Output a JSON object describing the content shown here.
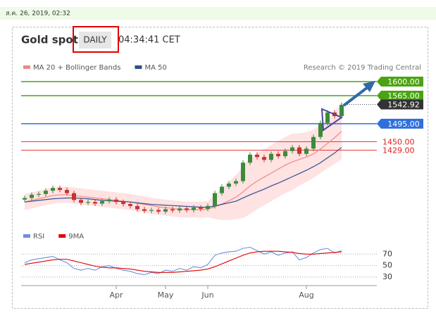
{
  "timestamp": "ส.ค. 26, 2019, 02:32",
  "chart_data": [
    {
      "type": "candlestick",
      "title": "Gold spot",
      "interval_button": "DAILY",
      "time": "04:34:41 CET",
      "credit": "Research © 2019 Trading Central",
      "categories": [
        null,
        null,
        null,
        null,
        null,
        null,
        null,
        null,
        null,
        null,
        null,
        null,
        null,
        null,
        null,
        null,
        null,
        null,
        null,
        null,
        null,
        null,
        null,
        null,
        null,
        null,
        null,
        null,
        null,
        null,
        null,
        null,
        null,
        null,
        null,
        null,
        null,
        null,
        null,
        null,
        null,
        null,
        null,
        null,
        null,
        null
      ],
      "open": [
        1306,
        1310,
        1318,
        1320,
        1328,
        1335,
        1330,
        1322,
        1305,
        1298,
        1300,
        1296,
        1302,
        1306,
        1300,
        1295,
        1290,
        1282,
        1278,
        1280,
        1276,
        1282,
        1279,
        1284,
        1280,
        1286,
        1283,
        1290,
        1322,
        1338,
        1346,
        1352,
        1398,
        1418,
        1412,
        1405,
        1420,
        1414,
        1427,
        1436,
        1420,
        1433,
        1462,
        1497,
        1523,
        1514
      ],
      "high": [
        1316,
        1324,
        1326,
        1334,
        1341,
        1341,
        1336,
        1328,
        1311,
        1306,
        1306,
        1308,
        1312,
        1312,
        1306,
        1301,
        1296,
        1288,
        1286,
        1286,
        1288,
        1288,
        1290,
        1290,
        1292,
        1292,
        1296,
        1328,
        1344,
        1352,
        1358,
        1404,
        1424,
        1424,
        1418,
        1426,
        1426,
        1433,
        1442,
        1442,
        1439,
        1468,
        1503,
        1529,
        1529,
        1548
      ],
      "low": [
        1300,
        1304,
        1312,
        1314,
        1322,
        1324,
        1316,
        1299,
        1292,
        1292,
        1290,
        1290,
        1296,
        1294,
        1289,
        1284,
        1276,
        1272,
        1272,
        1270,
        1270,
        1273,
        1273,
        1274,
        1274,
        1277,
        1277,
        1284,
        1316,
        1332,
        1340,
        1346,
        1392,
        1406,
        1399,
        1399,
        1408,
        1408,
        1421,
        1414,
        1414,
        1427,
        1456,
        1491,
        1508,
        1508
      ],
      "close": [
        1310,
        1318,
        1320,
        1328,
        1335,
        1330,
        1322,
        1305,
        1298,
        1300,
        1296,
        1302,
        1306,
        1300,
        1295,
        1290,
        1282,
        1278,
        1280,
        1276,
        1282,
        1279,
        1284,
        1280,
        1286,
        1283,
        1290,
        1322,
        1338,
        1346,
        1352,
        1398,
        1418,
        1412,
        1405,
        1420,
        1414,
        1427,
        1436,
        1420,
        1433,
        1462,
        1497,
        1523,
        1514,
        1542
      ],
      "up_color": "#3b8b3b",
      "down_color": "#c8332c",
      "series": [
        {
          "name": "MA 20 + Bollinger Bands",
          "color": "#ee8a8a",
          "band_color": "#ffd6d6",
          "values": [
            1300,
            1304,
            1308,
            1312,
            1316,
            1318,
            1318,
            1316,
            1314,
            1312,
            1310,
            1308,
            1306,
            1304,
            1302,
            1300,
            1297,
            1294,
            1291,
            1288,
            1286,
            1284,
            1282,
            1281,
            1281,
            1281,
            1282,
            1288,
            1295,
            1303,
            1312,
            1325,
            1340,
            1352,
            1362,
            1372,
            1382,
            1392,
            1400,
            1406,
            1412,
            1420,
            1432,
            1446,
            1460,
            1476
          ],
          "band_upper": [
            1320,
            1324,
            1328,
            1332,
            1336,
            1338,
            1338,
            1336,
            1334,
            1332,
            1330,
            1328,
            1326,
            1324,
            1322,
            1320,
            1317,
            1314,
            1311,
            1308,
            1306,
            1304,
            1302,
            1301,
            1301,
            1301,
            1302,
            1318,
            1335,
            1351,
            1367,
            1390,
            1410,
            1422,
            1432,
            1442,
            1452,
            1462,
            1470,
            1471,
            1474,
            1480,
            1492,
            1508,
            1525,
            1546
          ],
          "band_lower": [
            1280,
            1284,
            1288,
            1292,
            1296,
            1298,
            1298,
            1296,
            1294,
            1292,
            1290,
            1288,
            1286,
            1284,
            1282,
            1280,
            1277,
            1274,
            1271,
            1268,
            1266,
            1264,
            1262,
            1261,
            1261,
            1261,
            1262,
            1258,
            1255,
            1255,
            1257,
            1260,
            1270,
            1282,
            1292,
            1302,
            1312,
            1322,
            1330,
            1341,
            1350,
            1360,
            1372,
            1384,
            1395,
            1406
          ]
        },
        {
          "name": "MA 50",
          "color": "#2d4f8e",
          "values": [
            1300,
            1302,
            1304,
            1306,
            1308,
            1309,
            1310,
            1310,
            1309,
            1308,
            1306,
            1304,
            1303,
            1302,
            1301,
            1300,
            1298,
            1296,
            1294,
            1293,
            1292,
            1291,
            1290,
            1289,
            1288,
            1287,
            1287,
            1290,
            1294,
            1298,
            1302,
            1310,
            1318,
            1325,
            1332,
            1340,
            1347,
            1355,
            1363,
            1371,
            1379,
            1388,
            1398,
            1410,
            1422,
            1436
          ]
        }
      ],
      "levels": [
        {
          "value": 1600,
          "label": "1600.00",
          "color": "#4aa312",
          "style": "box",
          "dashed": false
        },
        {
          "value": 1565,
          "label": "1565.00",
          "color": "#4aa312",
          "style": "box",
          "dashed": false
        },
        {
          "value": 1542.92,
          "label": "1542.92",
          "color": "#333333",
          "style": "box",
          "dashed": true
        },
        {
          "value": 1495,
          "label": "1495.00",
          "color": "#2f6fdc",
          "style": "box",
          "dashed": false
        },
        {
          "value": 1450,
          "label": "1450.00",
          "color": "#e02020",
          "style": "text",
          "dashed": false
        },
        {
          "value": 1429,
          "label": "1429.00",
          "color": "#e02020",
          "style": "text",
          "dashed": false
        }
      ],
      "ylim": [
        1246,
        1614
      ]
    },
    {
      "type": "line",
      "series": [
        {
          "name": "RSI",
          "color": "#6f8fd8",
          "values": [
            55,
            60,
            62,
            64,
            66,
            60,
            55,
            45,
            42,
            45,
            42,
            48,
            50,
            45,
            42,
            40,
            36,
            34,
            38,
            36,
            42,
            40,
            45,
            42,
            48,
            46,
            52,
            68,
            72,
            74,
            75,
            80,
            82,
            76,
            70,
            74,
            68,
            72,
            74,
            60,
            64,
            72,
            78,
            80,
            72,
            76
          ]
        },
        {
          "name": "9MA",
          "color": "#e00000",
          "values": [
            52,
            54,
            56,
            58,
            60,
            61,
            61,
            58,
            55,
            52,
            49,
            47,
            46,
            46,
            45,
            44,
            42,
            40,
            39,
            38,
            38,
            38,
            39,
            40,
            41,
            42,
            44,
            48,
            53,
            58,
            63,
            68,
            72,
            74,
            75,
            75,
            75,
            74,
            73,
            71,
            70,
            70,
            71,
            72,
            73,
            74
          ]
        }
      ],
      "ylim": [
        20,
        90
      ],
      "yticks": [
        70,
        50,
        30
      ],
      "xticks": [
        {
          "value": 13,
          "label": "Apr"
        },
        {
          "value": 20,
          "label": "May"
        },
        {
          "value": 26,
          "label": "Jun"
        },
        {
          "value": 40,
          "label": "Aug"
        }
      ]
    }
  ]
}
